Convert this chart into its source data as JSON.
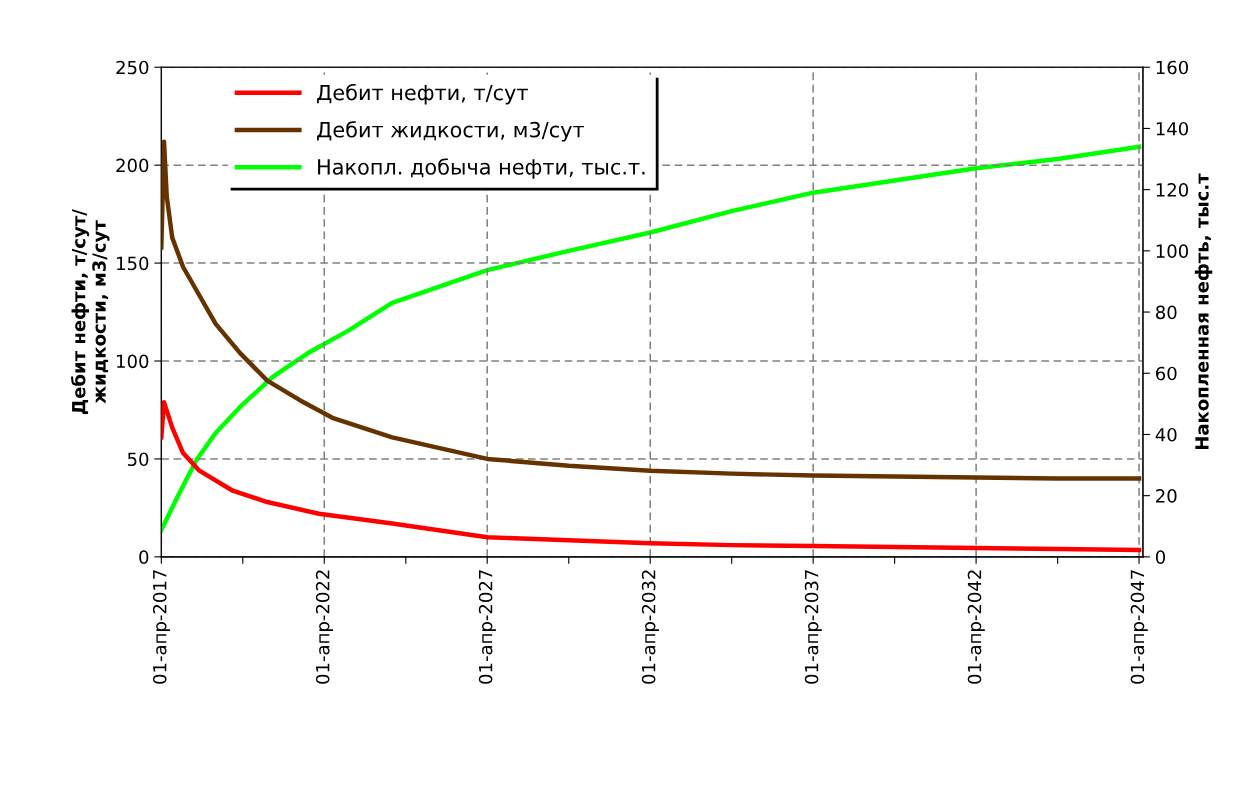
{
  "chart_data": {
    "type": "line",
    "ylabel": "Дебит нефти, т/сут/\nжидкости, м3/сут",
    "y2label": "Накопленная нефть, тыс.т",
    "xlim": [
      "2017-04-01",
      "2047-05-15"
    ],
    "xticks": [
      {
        "value": "2017-04-01",
        "label": "01-апр-2017"
      },
      {
        "value": "2019-10-01",
        "label": null
      },
      {
        "value": "2022-04-01",
        "label": "01-апр-2022"
      },
      {
        "value": "2024-10-01",
        "label": null
      },
      {
        "value": "2027-04-01",
        "label": "01-апр-2027"
      },
      {
        "value": "2029-10-01",
        "label": null
      },
      {
        "value": "2032-04-01",
        "label": "01-апр-2032"
      },
      {
        "value": "2034-10-01",
        "label": null
      },
      {
        "value": "2037-04-01",
        "label": "01-апр-2037"
      },
      {
        "value": "2039-10-01",
        "label": null
      },
      {
        "value": "2042-04-01",
        "label": "01-апр-2042"
      },
      {
        "value": "2044-10-01",
        "label": null
      },
      {
        "value": "2047-04-01",
        "label": "01-апр-2047"
      }
    ],
    "ylim": [
      0,
      250
    ],
    "yticks": [
      0,
      50,
      100,
      150,
      200,
      250
    ],
    "y2lim": [
      0,
      160
    ],
    "y2ticks": [
      0,
      20,
      40,
      60,
      80,
      100,
      120,
      140,
      160
    ],
    "grid": true,
    "legend": "top left",
    "line_style": "solid",
    "marker": "none",
    "series": [
      {
        "name": "Дебит нефти, т/сут",
        "color": "#ff0000",
        "x": [
          "2017-04",
          "2017-05",
          "2017-08",
          "2017-12",
          "2018-06",
          "2019-06",
          "2020-07",
          "2022-02",
          "2024-05",
          "2027-04",
          "2029-10",
          "2032-04",
          "2034-10",
          "2037-04",
          "2039-10",
          "2042-04",
          "2044-10",
          "2047-04"
        ],
        "values": [
          61,
          79,
          66,
          53,
          44,
          34,
          28,
          22,
          17,
          10,
          8.5,
          7,
          6,
          5.5,
          5,
          4.5,
          4,
          3.5
        ]
      },
      {
        "name": "Дебит жидкости, м3/сут",
        "color": "#663300",
        "x": [
          "2017-04",
          "2017-05",
          "2017-06",
          "2017-08",
          "2017-12",
          "2018-05",
          "2018-12",
          "2019-09",
          "2020-07",
          "2021-07",
          "2022-07",
          "2024-05",
          "2027-04",
          "2029-10",
          "2032-04",
          "2034-10",
          "2037-04",
          "2039-10",
          "2042-04",
          "2044-10",
          "2047-04"
        ],
        "values": [
          158,
          212,
          184,
          163,
          148,
          136,
          119,
          104,
          90,
          80,
          71,
          61,
          50,
          46.5,
          44,
          42.5,
          41.5,
          41,
          40.5,
          40,
          40
        ]
      },
      {
        "name": "Накопл. добыча нефти, тыс.т.",
        "color": "#00ff00",
        "axis": "y2",
        "x": [
          "2017-04",
          "2017-10",
          "2018-05",
          "2018-12",
          "2019-09",
          "2020-09",
          "2021-10",
          "2023-01",
          "2024-05",
          "2027-04",
          "2029-10",
          "2032-04",
          "2034-10",
          "2037-04",
          "2039-10",
          "2042-04",
          "2044-10",
          "2047-04"
        ],
        "values": [
          8.8,
          19.7,
          31.7,
          40.5,
          49,
          58.8,
          66.6,
          74,
          83,
          93.7,
          100,
          106,
          113,
          119,
          123,
          127,
          130,
          134
        ]
      }
    ]
  }
}
